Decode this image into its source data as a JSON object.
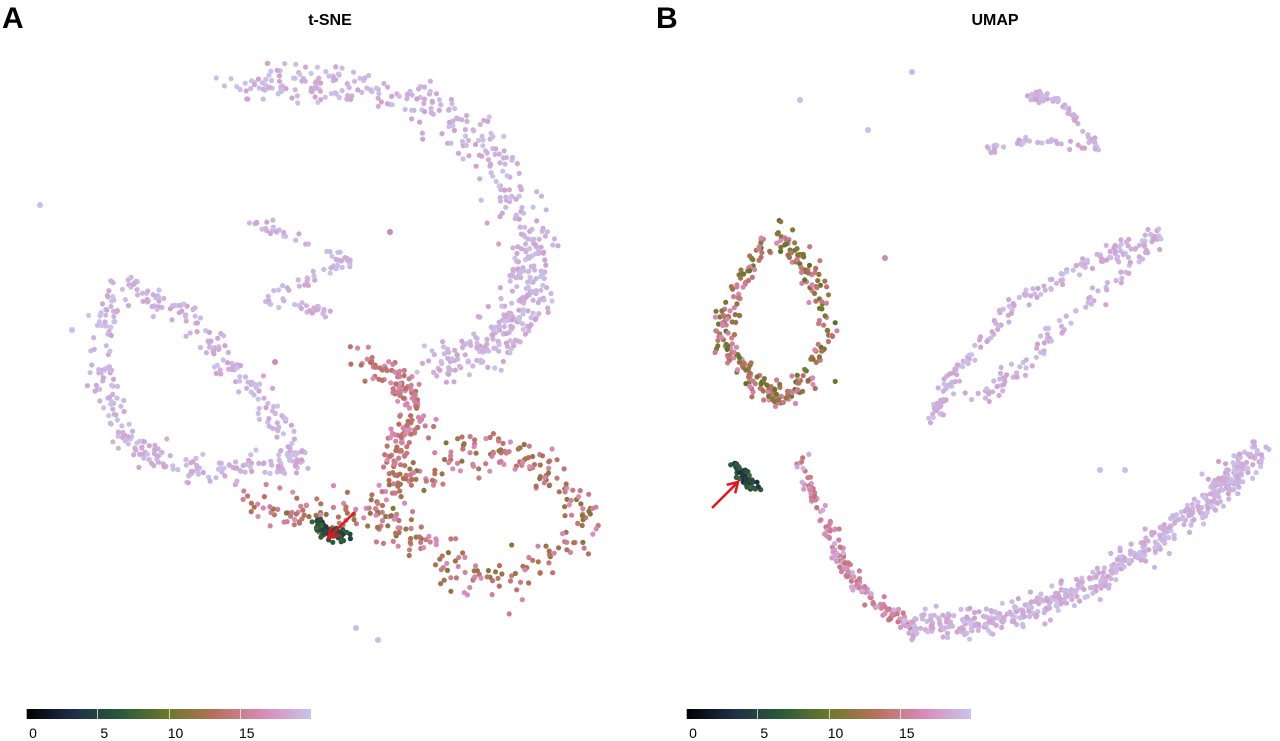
{
  "colorscale": {
    "stops": [
      "#000000",
      "#1f2f4a",
      "#2a5a3a",
      "#6b7a2a",
      "#b8705a",
      "#d98ab8",
      "#c8c4ee"
    ],
    "point_default": "#c3c0ec",
    "arrow_color": "#e8141c"
  },
  "chart_data": [
    {
      "panel": "A",
      "type": "scatter",
      "title": "t-SNE",
      "xlabel": "",
      "ylabel": "",
      "colorbar": {
        "ticks": [
          0,
          5,
          10,
          15
        ],
        "range": [
          0,
          20
        ]
      },
      "annotations": [
        "arrow"
      ],
      "clusters": [
        {
          "kind": "upper-arc",
          "n": 520,
          "value_range": [
            18,
            20
          ]
        },
        {
          "kind": "left-loop",
          "n": 380,
          "value_range": [
            18,
            20
          ]
        },
        {
          "kind": "center-streaks",
          "n": 90,
          "value_range": [
            18,
            20
          ]
        },
        {
          "kind": "transition",
          "n": 160,
          "value_range": [
            13,
            17
          ]
        },
        {
          "kind": "lower-mass",
          "n": 360,
          "value_range": [
            11,
            17
          ]
        },
        {
          "kind": "core",
          "n": 70,
          "value_range": [
            4,
            8
          ]
        }
      ]
    },
    {
      "panel": "B",
      "type": "scatter",
      "title": "UMAP",
      "xlabel": "",
      "ylabel": "",
      "colorbar": {
        "ticks": [
          0,
          5,
          10,
          15
        ],
        "range": [
          0,
          20
        ]
      },
      "annotations": [
        "arrow"
      ],
      "clusters": [
        {
          "kind": "left-loop",
          "n": 300,
          "value_range": [
            9,
            17
          ]
        },
        {
          "kind": "core",
          "n": 60,
          "value_range": [
            3,
            8
          ]
        },
        {
          "kind": "descending-arm",
          "n": 160,
          "value_range": [
            14,
            19
          ]
        },
        {
          "kind": "bottom-arc",
          "n": 560,
          "value_range": [
            18,
            20
          ]
        },
        {
          "kind": "middle-leaf",
          "n": 260,
          "value_range": [
            18,
            20
          ]
        },
        {
          "kind": "top-leaf",
          "n": 90,
          "value_range": [
            18,
            20
          ]
        }
      ]
    }
  ]
}
